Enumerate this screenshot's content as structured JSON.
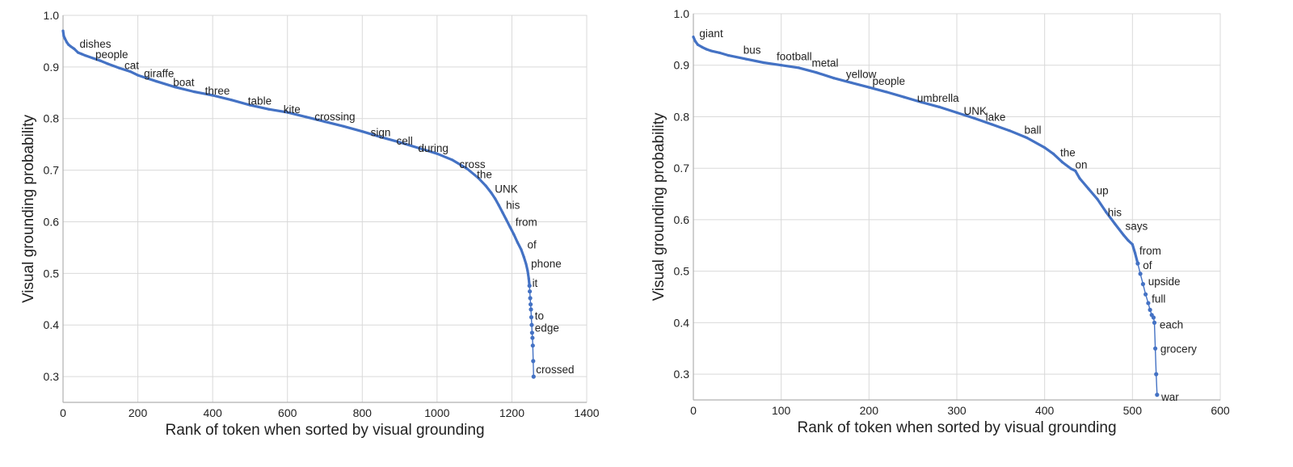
{
  "chart_data": [
    {
      "type": "line",
      "title": "",
      "xlabel": "Rank of token when sorted by visual grounding",
      "ylabel": "Visual grounding probability",
      "xlim": [
        0,
        1400
      ],
      "ylim": [
        0.25,
        1.0
      ],
      "xticks": [
        0,
        200,
        400,
        600,
        800,
        1000,
        1200,
        1400
      ],
      "yticks": [
        0.3,
        0.4,
        0.5,
        0.6,
        0.7,
        0.8,
        0.9,
        1.0
      ],
      "xtick_labels": [
        "0",
        "200",
        "400",
        "600",
        "800",
        "1000",
        "1200",
        "1400"
      ],
      "ytick_labels": [
        "0.3",
        "0.4",
        "0.5",
        "0.6",
        "0.7",
        "0.8",
        "0.9",
        "1.0"
      ],
      "grid": true,
      "series_color": "#4472c4",
      "x": [
        0,
        2,
        5,
        10,
        15,
        20,
        30,
        40,
        50,
        60,
        80,
        100,
        120,
        150,
        180,
        200,
        250,
        300,
        350,
        400,
        450,
        500,
        550,
        600,
        650,
        700,
        750,
        800,
        850,
        900,
        950,
        1000,
        1040,
        1080,
        1110,
        1130,
        1145,
        1155,
        1165,
        1175,
        1185,
        1195,
        1205,
        1215,
        1225,
        1232,
        1238,
        1242,
        1245,
        1247,
        1248,
        1249,
        1250,
        1251,
        1252,
        1253,
        1254,
        1255,
        1256,
        1257,
        1258
      ],
      "y": [
        0.97,
        0.96,
        0.955,
        0.948,
        0.943,
        0.94,
        0.935,
        0.928,
        0.925,
        0.922,
        0.917,
        0.912,
        0.906,
        0.898,
        0.891,
        0.884,
        0.872,
        0.861,
        0.852,
        0.845,
        0.836,
        0.826,
        0.818,
        0.812,
        0.803,
        0.794,
        0.785,
        0.775,
        0.764,
        0.754,
        0.743,
        0.732,
        0.72,
        0.703,
        0.685,
        0.67,
        0.656,
        0.645,
        0.632,
        0.618,
        0.604,
        0.59,
        0.576,
        0.56,
        0.546,
        0.532,
        0.518,
        0.505,
        0.49,
        0.476,
        0.465,
        0.452,
        0.44,
        0.43,
        0.415,
        0.4,
        0.385,
        0.375,
        0.36,
        0.33,
        0.3
      ],
      "annotations": [
        {
          "text": "dishes",
          "x": 40,
          "y": 0.945
        },
        {
          "text": "people",
          "x": 82,
          "y": 0.925
        },
        {
          "text": "cat",
          "x": 160,
          "y": 0.904
        },
        {
          "text": "giraffe",
          "x": 212,
          "y": 0.888
        },
        {
          "text": "boat",
          "x": 290,
          "y": 0.871
        },
        {
          "text": "three",
          "x": 375,
          "y": 0.854
        },
        {
          "text": "table",
          "x": 490,
          "y": 0.835
        },
        {
          "text": "kite",
          "x": 585,
          "y": 0.818
        },
        {
          "text": "crossing",
          "x": 668,
          "y": 0.804
        },
        {
          "text": "sign",
          "x": 818,
          "y": 0.774
        },
        {
          "text": "cell",
          "x": 887,
          "y": 0.757
        },
        {
          "text": "during",
          "x": 945,
          "y": 0.743
        },
        {
          "text": "cross",
          "x": 1055,
          "y": 0.712
        },
        {
          "text": "the",
          "x": 1102,
          "y": 0.692
        },
        {
          "text": "UNK",
          "x": 1150,
          "y": 0.664
        },
        {
          "text": "his",
          "x": 1180,
          "y": 0.633
        },
        {
          "text": "from",
          "x": 1205,
          "y": 0.6
        },
        {
          "text": "of",
          "x": 1237,
          "y": 0.556
        },
        {
          "text": "phone",
          "x": 1247,
          "y": 0.519
        },
        {
          "text": "it",
          "x": 1250,
          "y": 0.482
        },
        {
          "text": "to",
          "x": 1257,
          "y": 0.418
        },
        {
          "text": "edge",
          "x": 1257,
          "y": 0.395
        },
        {
          "text": "crossed",
          "x": 1260,
          "y": 0.314
        }
      ]
    },
    {
      "type": "line",
      "title": "",
      "xlabel": "Rank of token when sorted by visual grounding",
      "ylabel": "Visual grounding probability",
      "xlim": [
        0,
        600
      ],
      "ylim": [
        0.25,
        1.0
      ],
      "xticks": [
        0,
        100,
        200,
        300,
        400,
        500,
        600
      ],
      "yticks": [
        0.3,
        0.4,
        0.5,
        0.6,
        0.7,
        0.8,
        0.9,
        1.0
      ],
      "xtick_labels": [
        "0",
        "100",
        "200",
        "300",
        "400",
        "500",
        "600"
      ],
      "ytick_labels": [
        "0.3",
        "0.4",
        "0.5",
        "0.6",
        "0.7",
        "0.8",
        "0.9",
        "1.0"
      ],
      "grid": true,
      "series_color": "#4472c4",
      "x": [
        0,
        2,
        5,
        10,
        15,
        20,
        30,
        40,
        60,
        80,
        100,
        120,
        140,
        160,
        180,
        200,
        220,
        240,
        260,
        280,
        300,
        320,
        340,
        360,
        380,
        400,
        410,
        420,
        430,
        435,
        440,
        450,
        460,
        470,
        480,
        490,
        495,
        500,
        503,
        506,
        509,
        512,
        515,
        518,
        520,
        522,
        524,
        525,
        526,
        527,
        528
      ],
      "y": [
        0.955,
        0.947,
        0.94,
        0.935,
        0.931,
        0.928,
        0.924,
        0.919,
        0.912,
        0.905,
        0.9,
        0.895,
        0.886,
        0.875,
        0.866,
        0.857,
        0.848,
        0.838,
        0.828,
        0.819,
        0.808,
        0.797,
        0.785,
        0.773,
        0.759,
        0.74,
        0.728,
        0.712,
        0.699,
        0.695,
        0.68,
        0.66,
        0.64,
        0.615,
        0.592,
        0.57,
        0.56,
        0.552,
        0.535,
        0.515,
        0.495,
        0.475,
        0.455,
        0.438,
        0.425,
        0.415,
        0.41,
        0.4,
        0.35,
        0.3,
        0.26
      ],
      "annotations": [
        {
          "text": "giant",
          "x": 5,
          "y": 0.962
        },
        {
          "text": "bus",
          "x": 55,
          "y": 0.93
        },
        {
          "text": "football",
          "x": 93,
          "y": 0.918
        },
        {
          "text": "metal",
          "x": 133,
          "y": 0.905
        },
        {
          "text": "yellow",
          "x": 172,
          "y": 0.883
        },
        {
          "text": "people",
          "x": 202,
          "y": 0.87
        },
        {
          "text": "umbrella",
          "x": 253,
          "y": 0.837
        },
        {
          "text": "UNK",
          "x": 306,
          "y": 0.812
        },
        {
          "text": "lake",
          "x": 331,
          "y": 0.8
        },
        {
          "text": "ball",
          "x": 375,
          "y": 0.775
        },
        {
          "text": "the",
          "x": 416,
          "y": 0.731
        },
        {
          "text": "on",
          "x": 433,
          "y": 0.707
        },
        {
          "text": "up",
          "x": 457,
          "y": 0.657
        },
        {
          "text": "his",
          "x": 470,
          "y": 0.615
        },
        {
          "text": "says",
          "x": 490,
          "y": 0.588
        },
        {
          "text": "from",
          "x": 506,
          "y": 0.54
        },
        {
          "text": "of",
          "x": 510,
          "y": 0.512
        },
        {
          "text": "upside",
          "x": 516,
          "y": 0.481
        },
        {
          "text": "full",
          "x": 520,
          "y": 0.447
        },
        {
          "text": "each",
          "x": 529,
          "y": 0.397
        },
        {
          "text": "grocery",
          "x": 530,
          "y": 0.35
        },
        {
          "text": "war",
          "x": 531,
          "y": 0.256
        }
      ]
    }
  ]
}
